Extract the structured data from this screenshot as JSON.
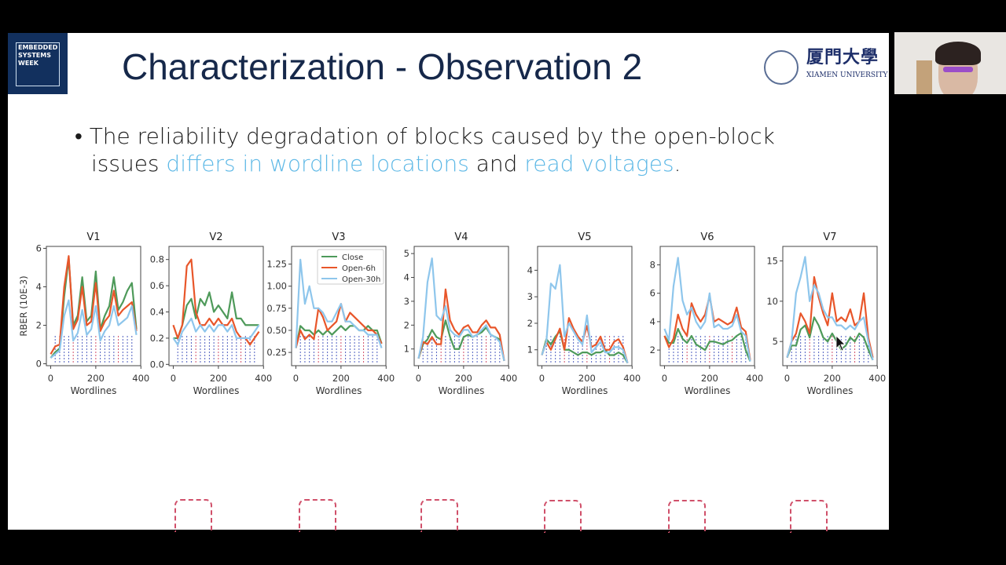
{
  "logo_text": [
    "EMBEDDED",
    "SYSTEMS",
    "WEEK"
  ],
  "title": "Characterization - Observation 2",
  "university": {
    "cn": "厦門大學",
    "en": "XIAMEN UNIVERSITY"
  },
  "bullet": {
    "line1": "The reliability degradation of blocks caused by the open-block",
    "line2_pre": "issues ",
    "hl1": "differs in wordline locations",
    "mid": " and ",
    "hl2": "read voltages",
    "end": "."
  },
  "colors": {
    "close": "#4e9a5a",
    "open6h": "#e8562a",
    "open30h": "#8ec6ec",
    "highlight": "#5db8e6",
    "title": "#16284a"
  },
  "chart_data": {
    "type": "line",
    "ylabel": "RBER (10E-3)",
    "xlabel": "Wordlines",
    "legend": {
      "placement": "top-right of V3",
      "entries": [
        "Close",
        "Open-6h",
        "Open-30h"
      ]
    },
    "x": [
      0,
      20,
      40,
      60,
      80,
      100,
      120,
      140,
      160,
      180,
      200,
      220,
      240,
      260,
      280,
      300,
      320,
      340,
      360,
      380
    ],
    "xlim": [
      -19,
      399
    ],
    "xticks": [
      0,
      200,
      400
    ],
    "panels": [
      {
        "title": "V1",
        "ylim": [
          -0.1,
          6.1
        ],
        "yticks": [
          0,
          2,
          4,
          6
        ],
        "ytick_labels": [
          "0",
          "2",
          "4",
          "6"
        ],
        "series": [
          {
            "name": "Close",
            "values": [
              0.3,
              0.6,
              0.8,
              3.5,
              5.5,
              2,
              2.5,
              4.5,
              2.2,
              2.5,
              4.8,
              1.8,
              2.5,
              3,
              4.5,
              2.8,
              3.2,
              3.8,
              4.2,
              1.8
            ]
          },
          {
            "name": "Open-6h",
            "values": [
              0.5,
              0.9,
              1,
              4,
              5.6,
              1.8,
              2.3,
              4,
              2,
              2.2,
              4.2,
              1.7,
              2.2,
              2.5,
              3.8,
              2.5,
              2.8,
              3,
              3.2,
              1.7
            ]
          },
          {
            "name": "Open-30h",
            "values": [
              0.3,
              0.5,
              0.7,
              2.5,
              3.3,
              1.2,
              1.6,
              2.8,
              1.5,
              1.8,
              3,
              1.2,
              1.7,
              2,
              3,
              2,
              2.2,
              2.4,
              3,
              1.5
            ]
          }
        ]
      },
      {
        "title": "V2",
        "ylim": [
          -0.01,
          0.9
        ],
        "yticks": [
          0,
          0.2,
          0.4,
          0.6,
          0.8
        ],
        "ytick_labels": [
          "0.0",
          "0.2",
          "0.4",
          "0.6",
          "0.8"
        ],
        "series": [
          {
            "name": "Close",
            "values": [
              0.2,
              0.2,
              0.3,
              0.45,
              0.5,
              0.35,
              0.5,
              0.45,
              0.55,
              0.4,
              0.45,
              0.4,
              0.35,
              0.55,
              0.35,
              0.35,
              0.3,
              0.3,
              0.3,
              0.3
            ]
          },
          {
            "name": "Open-6h",
            "values": [
              0.3,
              0.2,
              0.3,
              0.75,
              0.8,
              0.4,
              0.3,
              0.3,
              0.35,
              0.3,
              0.35,
              0.3,
              0.3,
              0.35,
              0.25,
              0.2,
              0.2,
              0.15,
              0.2,
              0.25
            ]
          },
          {
            "name": "Open-30h",
            "values": [
              0.2,
              0.15,
              0.25,
              0.3,
              0.35,
              0.25,
              0.3,
              0.25,
              0.3,
              0.25,
              0.3,
              0.3,
              0.25,
              0.3,
              0.2,
              0.2,
              0.2,
              0.2,
              0.25,
              0.3
            ]
          }
        ]
      },
      {
        "title": "V3",
        "ylim": [
          0.1,
          1.45
        ],
        "yticks": [
          0.25,
          0.5,
          0.75,
          1.0,
          1.25
        ],
        "ytick_labels": [
          "0.25",
          "0.50",
          "0.75",
          "1.00",
          "1.25"
        ],
        "series": [
          {
            "name": "Close",
            "values": [
              0.3,
              0.55,
              0.5,
              0.5,
              0.45,
              0.5,
              0.45,
              0.5,
              0.45,
              0.5,
              0.55,
              0.5,
              0.55,
              0.55,
              0.5,
              0.5,
              0.55,
              0.5,
              0.5,
              0.35
            ]
          },
          {
            "name": "Open-6h",
            "values": [
              0.3,
              0.5,
              0.4,
              0.45,
              0.4,
              0.75,
              0.65,
              0.5,
              0.55,
              0.6,
              0.8,
              0.6,
              0.7,
              0.65,
              0.6,
              0.55,
              0.5,
              0.5,
              0.45,
              0.35
            ]
          },
          {
            "name": "Open-30h",
            "values": [
              0.3,
              1.3,
              0.8,
              1.0,
              0.75,
              0.75,
              0.7,
              0.6,
              0.6,
              0.7,
              0.8,
              0.6,
              0.6,
              0.55,
              0.5,
              0.5,
              0.45,
              0.45,
              0.45,
              0.3
            ]
          }
        ]
      },
      {
        "title": "V4",
        "ylim": [
          0.3,
          5.3
        ],
        "yticks": [
          1,
          2,
          3,
          4,
          5
        ],
        "ytick_labels": [
          "1",
          "2",
          "3",
          "4",
          "5"
        ],
        "series": [
          {
            "name": "Close",
            "values": [
              0.6,
              1.2,
              1.4,
              1.8,
              1.5,
              1.4,
              2.2,
              1.5,
              1.0,
              1.0,
              1.5,
              1.6,
              1.5,
              1.6,
              1.7,
              1.9,
              1.6,
              1.5,
              1.4,
              0.5
            ]
          },
          {
            "name": "Open-6h",
            "values": [
              0.6,
              1.3,
              1.2,
              1.5,
              1.2,
              1.2,
              3.5,
              2.2,
              1.8,
              1.6,
              1.9,
              2.0,
              1.7,
              1.7,
              2.0,
              2.2,
              1.9,
              1.9,
              1.6,
              0.5
            ]
          },
          {
            "name": "Open-30h",
            "values": [
              0.6,
              1.5,
              3.8,
              4.8,
              2.4,
              2.2,
              2.8,
              1.8,
              1.6,
              1.5,
              1.8,
              1.8,
              1.5,
              1.6,
              1.8,
              2.0,
              1.6,
              1.5,
              1.3,
              0.5
            ]
          }
        ]
      },
      {
        "title": "V5",
        "ylim": [
          0.4,
          4.9
        ],
        "yticks": [
          1,
          2,
          3,
          4
        ],
        "ytick_labels": [
          "1",
          "2",
          "3",
          "4"
        ],
        "series": [
          {
            "name": "Close",
            "values": [
              0.8,
              1.4,
              1.2,
              1.5,
              1.7,
              1.0,
              1.0,
              0.9,
              0.8,
              0.9,
              0.9,
              0.8,
              0.9,
              0.9,
              1.0,
              0.8,
              0.8,
              0.9,
              0.8,
              0.5
            ]
          },
          {
            "name": "Open-6h",
            "values": [
              0.8,
              1.3,
              1.0,
              1.4,
              1.8,
              1.0,
              2.2,
              1.8,
              1.5,
              1.3,
              1.9,
              1.1,
              1.2,
              1.5,
              1.0,
              1.0,
              1.3,
              1.4,
              1.1,
              0.5
            ]
          },
          {
            "name": "Open-30h",
            "values": [
              0.8,
              1.3,
              3.5,
              3.3,
              4.2,
              1.5,
              2.0,
              1.7,
              1.4,
              1.2,
              2.3,
              0.9,
              1.1,
              1.3,
              0.9,
              0.9,
              1.1,
              1.1,
              1.0,
              0.5
            ]
          }
        ]
      },
      {
        "title": "V6",
        "ylim": [
          0.9,
          9.3
        ],
        "yticks": [
          2,
          4,
          6,
          8
        ],
        "ytick_labels": [
          "2",
          "4",
          "6",
          "8"
        ],
        "series": [
          {
            "name": "Close",
            "values": [
              3,
              2.5,
              2.5,
              3.5,
              2.8,
              2.5,
              3,
              2.4,
              2.2,
              2,
              2.6,
              2.6,
              2.5,
              2.4,
              2.6,
              2.7,
              3,
              3.2,
              2,
              1.2
            ]
          },
          {
            "name": "Open-6h",
            "values": [
              3,
              2.2,
              2.8,
              4.5,
              3.5,
              3,
              5.3,
              4.5,
              4,
              4.5,
              5.8,
              4,
              4.2,
              4,
              3.8,
              4,
              5,
              3.6,
              3.3,
              1.3
            ]
          },
          {
            "name": "Open-30h",
            "values": [
              3.5,
              2.7,
              6.5,
              8.5,
              5.5,
              4.5,
              5,
              4,
              3.5,
              4,
              6,
              3.6,
              3.8,
              3.5,
              3.5,
              3.7,
              4.5,
              3.3,
              3,
              1.2
            ]
          }
        ]
      },
      {
        "title": "V7",
        "ylim": [
          2,
          16.8
        ],
        "yticks": [
          5,
          10,
          15
        ],
        "ytick_labels": [
          "5",
          "10",
          "15"
        ],
        "series": [
          {
            "name": "Close",
            "values": [
              3,
              4.5,
              4.5,
              6.5,
              7,
              5.5,
              8,
              7,
              5.5,
              5,
              6,
              5,
              4,
              4.5,
              5.5,
              5,
              6,
              5.5,
              4,
              2.7
            ]
          },
          {
            "name": "Open-6h",
            "values": [
              3,
              5,
              6,
              8.5,
              7.5,
              6,
              13,
              10.5,
              8.5,
              7,
              11,
              7.5,
              8,
              7.5,
              9,
              7,
              7.5,
              11,
              5.5,
              3
            ]
          },
          {
            "name": "Open-30h",
            "values": [
              3,
              5,
              11,
              13,
              15.5,
              10,
              12,
              11,
              9,
              8,
              8,
              7,
              7,
              6.5,
              7,
              6.5,
              7.5,
              8,
              5,
              2.7
            ]
          }
        ]
      }
    ]
  }
}
